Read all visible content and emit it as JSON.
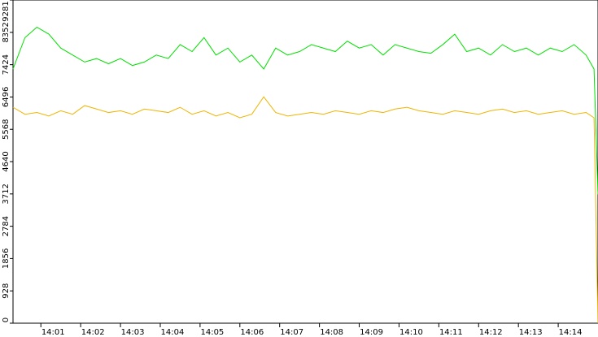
{
  "chart_data": {
    "type": "line",
    "x": [
      0.3,
      0.6,
      0.9,
      1.2,
      1.5,
      1.8,
      2.1,
      2.4,
      2.7,
      3.0,
      3.3,
      3.6,
      3.9,
      4.2,
      4.5,
      4.8,
      5.1,
      5.4,
      5.7,
      6.0,
      6.3,
      6.6,
      6.9,
      7.2,
      7.5,
      7.8,
      8.1,
      8.4,
      8.7,
      9.0,
      9.3,
      9.6,
      9.9,
      10.2,
      10.5,
      10.8,
      11.1,
      11.4,
      11.7,
      12.0,
      12.3,
      12.6,
      12.9,
      13.2,
      13.5,
      13.8,
      14.1,
      14.4,
      14.7,
      14.9,
      15.0
    ],
    "series": [
      {
        "color": "#00e000",
        "values": [
          7300,
          8200,
          8500,
          8300,
          7900,
          7700,
          7500,
          7600,
          7450,
          7600,
          7400,
          7500,
          7700,
          7600,
          8000,
          7800,
          8200,
          7700,
          7900,
          7500,
          7700,
          7300,
          7900,
          7700,
          7800,
          8000,
          7900,
          7800,
          8100,
          7900,
          8000,
          7700,
          8000,
          7900,
          7800,
          7750,
          8000,
          8300,
          7800,
          7900,
          7700,
          8000,
          7800,
          7900,
          7700,
          7900,
          7800,
          8000,
          7700,
          7300,
          3700
        ]
      },
      {
        "color": "#f0b400",
        "values": [
          6200,
          6000,
          6050,
          5950,
          6100,
          6000,
          6250,
          6150,
          6050,
          6100,
          6000,
          6150,
          6100,
          6050,
          6200,
          6000,
          6100,
          5950,
          6050,
          5900,
          6000,
          6500,
          6050,
          5950,
          6000,
          6050,
          6000,
          6100,
          6050,
          6000,
          6100,
          6050,
          6150,
          6200,
          6100,
          6050,
          6000,
          6100,
          6050,
          6000,
          6100,
          6150,
          6050,
          6100,
          6000,
          6050,
          6100,
          6000,
          6050,
          5900,
          0
        ]
      }
    ],
    "xlim": [
      0.3,
      15.0
    ],
    "xticks": [
      {
        "value": 1,
        "label": "14:01"
      },
      {
        "value": 2,
        "label": "14:02"
      },
      {
        "value": 3,
        "label": "14:03"
      },
      {
        "value": 4,
        "label": "14:04"
      },
      {
        "value": 5,
        "label": "14:05"
      },
      {
        "value": 6,
        "label": "14:06"
      },
      {
        "value": 7,
        "label": "14:07"
      },
      {
        "value": 8,
        "label": "14:08"
      },
      {
        "value": 9,
        "label": "14:09"
      },
      {
        "value": 10,
        "label": "14:10"
      },
      {
        "value": 11,
        "label": "14:11"
      },
      {
        "value": 12,
        "label": "14:12"
      },
      {
        "value": 13,
        "label": "14:13"
      },
      {
        "value": 14,
        "label": "14:14"
      }
    ],
    "ylim": [
      0,
      9281
    ],
    "yticks": [
      0,
      928,
      1856,
      2784,
      3712,
      4640,
      5568,
      6496,
      7424,
      8352,
      9281
    ]
  }
}
